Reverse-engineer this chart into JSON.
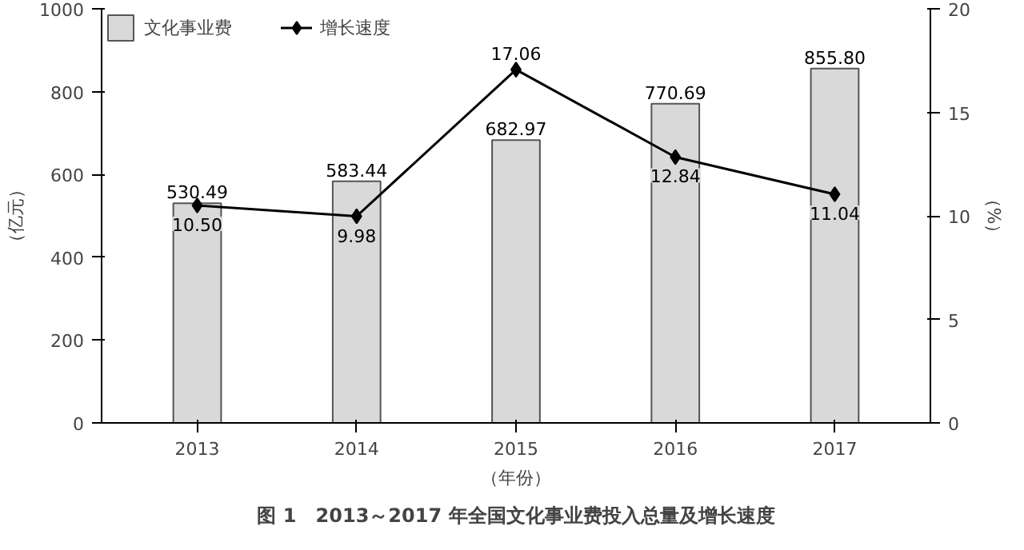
{
  "chart_data": {
    "type": "bar",
    "title": "图 1　2013～2017 年全国文化事业费投入总量及增长速度",
    "categories": [
      "2013",
      "2014",
      "2015",
      "2016",
      "2017"
    ],
    "series": [
      {
        "name": "文化事业费",
        "color": "#d9d9d9",
        "values": [
          530.49,
          583.44,
          682.97,
          770.69,
          855.8
        ],
        "value_labels": [
          "530.49",
          "583.44",
          "682.97",
          "770.69",
          "855.80"
        ]
      },
      {
        "name": "增长速度",
        "type": "line",
        "axis": "y2",
        "color": "#000000",
        "marker": "diamond",
        "values": [
          10.5,
          9.98,
          17.06,
          12.84,
          11.04
        ],
        "value_labels": [
          "10.50",
          "9.98",
          "17.06",
          "12.84",
          "11.04"
        ]
      }
    ],
    "ylabel": "（亿元）",
    "y2label": "（%）",
    "xlabel": "（年份）",
    "ylim": [
      0,
      1000
    ],
    "yticks": [
      0,
      200,
      400,
      600,
      800,
      1000
    ],
    "y2lim": [
      0,
      20
    ],
    "y2ticks": [
      0,
      5,
      10,
      15,
      20
    ],
    "grid": false,
    "legend": "top left"
  }
}
